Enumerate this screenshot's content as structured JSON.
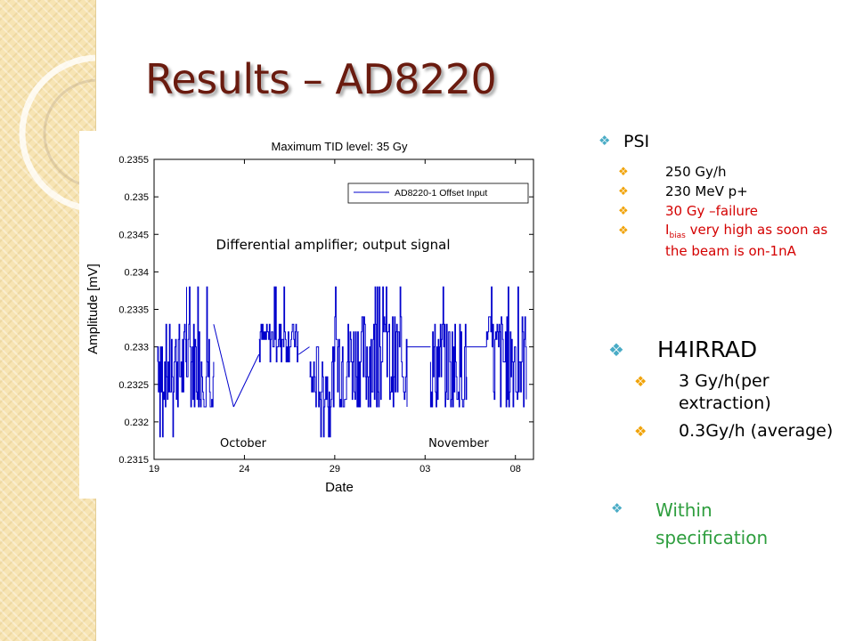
{
  "slide": {
    "title": "Results – AD8220",
    "colors": {
      "title": "#6a1b0f",
      "bullet1": "#4aacc6",
      "bullet2": "#f0a30a",
      "red_text": "#d40000",
      "green_text": "#2e9e3e",
      "series": "#0000cc"
    }
  },
  "chart_data": {
    "type": "line",
    "title": "Maximum TID level: 35 Gy",
    "xlabel": "Date",
    "ylabel": "Amplitude [mV]",
    "ylim": [
      0.2315,
      0.2355
    ],
    "yticks": [
      "0.2315",
      "0.232",
      "0.2325",
      "0.233",
      "0.2335",
      "0.234",
      "0.2345",
      "0.235",
      "0.2355"
    ],
    "xticks": [
      "19",
      "24",
      "29",
      "03",
      "08"
    ],
    "xlim_days": [
      19,
      40
    ],
    "grid": false,
    "legend": {
      "entries": [
        "AD8220-1 Offset Input"
      ],
      "placement": "top-right"
    },
    "annotations": {
      "subtitle": "Differential amplifier; output signal",
      "month1": "October",
      "month2": "November"
    },
    "series": [
      {
        "name": "AD8220-1 Offset Input",
        "levels": [
          0.2318,
          0.2322,
          0.2323,
          0.2324,
          0.2326,
          0.2328,
          0.233,
          0.2331,
          0.2332,
          0.2333,
          0.2334,
          0.2336,
          0.2337,
          0.2338
        ],
        "segments": [
          {
            "x_start": 19.2,
            "x_end": 20.8,
            "pattern": "noisy",
            "low": 0.2322,
            "high": 0.2333,
            "spikes_low": [
              0.2318
            ],
            "spikes_high": [
              0.2338
            ]
          },
          {
            "x_start": 20.8,
            "x_end": 22.3,
            "pattern": "noisy",
            "low": 0.2322,
            "high": 0.2333,
            "spikes_high": [
              0.2338
            ]
          },
          {
            "x_start": 22.3,
            "x_end": 23.4,
            "pattern": "drift",
            "from": 0.2333,
            "to": 0.2322
          },
          {
            "x_start": 23.4,
            "x_end": 24.8,
            "pattern": "drift",
            "from": 0.2322,
            "to": 0.2329
          },
          {
            "x_start": 24.8,
            "x_end": 27.0,
            "pattern": "noisy",
            "low": 0.2328,
            "high": 0.2333,
            "spikes_high": [
              0.2338
            ]
          },
          {
            "x_start": 27.0,
            "x_end": 27.6,
            "pattern": "drift",
            "from": 0.2329,
            "to": 0.233
          },
          {
            "x_start": 27.6,
            "x_end": 29.0,
            "pattern": "noisy",
            "low": 0.2322,
            "high": 0.233,
            "spikes_low": [
              0.2318
            ]
          },
          {
            "x_start": 29.0,
            "x_end": 33.0,
            "pattern": "noisy",
            "low": 0.2321,
            "high": 0.2334,
            "spikes_high": [
              0.2338
            ]
          },
          {
            "x_start": 33.0,
            "x_end": 34.3,
            "pattern": "flat",
            "value": 0.233
          },
          {
            "x_start": 34.3,
            "x_end": 36.3,
            "pattern": "noisy",
            "low": 0.2322,
            "high": 0.2333,
            "spikes_high": [
              0.2338
            ]
          },
          {
            "x_start": 36.3,
            "x_end": 37.4,
            "pattern": "flat",
            "value": 0.233
          },
          {
            "x_start": 37.4,
            "x_end": 39.6,
            "pattern": "noisy",
            "low": 0.2321,
            "high": 0.2334,
            "spikes_high": [
              0.2338
            ]
          }
        ]
      }
    ]
  },
  "bullets": {
    "psi": {
      "heading": "PSI",
      "items": [
        {
          "text": "250 Gy/h",
          "color": "#000000"
        },
        {
          "text": "230 MeV p+",
          "color": "#000000"
        },
        {
          "text": "30 Gy –failure",
          "color": "#d40000"
        }
      ],
      "bias": {
        "letter": "I",
        "sub": "bias",
        "rest": " very high as soon as the beam is on-1nA",
        "color": "#d40000"
      }
    },
    "h4irrad": {
      "heading": "H4IRRAD",
      "items": [
        "3 Gy/h(per extraction)",
        "0.3Gy/h (average)"
      ]
    },
    "within": {
      "text": "Within specification",
      "color": "#2e9e3e"
    },
    "glyph": "❖"
  }
}
